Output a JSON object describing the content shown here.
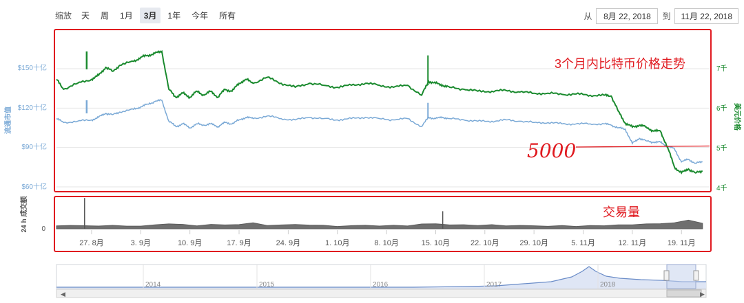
{
  "zoom": {
    "label": "缩放",
    "options": [
      "天",
      "周",
      "1月",
      "3月",
      "1年",
      "今年",
      "所有"
    ],
    "active": "3月"
  },
  "range": {
    "from_label": "从",
    "from": "8月 22, 2018",
    "to_label": "到",
    "to": "11月 22, 2018"
  },
  "colors": {
    "market_cap": "#7aa9d6",
    "price": "#1a8a2e",
    "volume": "#7a7a7a",
    "annotation": "#e0191f",
    "navigator": "#6a8cc8"
  },
  "chart_data": [
    {
      "type": "line",
      "title": "3个月内比特币价格走势",
      "x_ticks": [
        "27. 8月",
        "3. 9月",
        "10. 9月",
        "17. 9月",
        "24. 9月",
        "1. 10月",
        "8. 10月",
        "15. 10月",
        "22. 10月",
        "29. 10月",
        "5. 11月",
        "12. 11月",
        "19. 11月"
      ],
      "left_axis": {
        "label": "流通市值",
        "ticks": [
          "$60十亿",
          "$90十亿",
          "$120十亿",
          "$150十亿"
        ],
        "range": [
          60,
          150
        ]
      },
      "right_axis": {
        "label": "美元价格",
        "ticks": [
          "4千",
          "5千",
          "6千",
          "7千"
        ],
        "range": [
          4000,
          7000
        ]
      },
      "series": [
        {
          "name": "流通市值",
          "axis": "left",
          "x_days": [
            0,
            1,
            3,
            5,
            6,
            7,
            8,
            9,
            11,
            12,
            13,
            14,
            15,
            16,
            17,
            18,
            19,
            20,
            21,
            22,
            23,
            24,
            25,
            26,
            27,
            28,
            30,
            32,
            34,
            36,
            38,
            40,
            42,
            44,
            46,
            48,
            50,
            52,
            53,
            54,
            55,
            56,
            58,
            60,
            62,
            64,
            66,
            68,
            70,
            72,
            74,
            76,
            78,
            79,
            80,
            81,
            82,
            83,
            84,
            85,
            86,
            87,
            88,
            89,
            90,
            91,
            92
          ],
          "values": [
            112,
            109,
            110,
            111,
            113,
            116,
            115,
            117,
            119,
            121,
            123,
            125,
            126,
            110,
            106,
            108,
            105,
            108,
            107,
            108,
            106,
            109,
            108,
            111,
            113,
            112,
            114,
            112,
            111,
            113,
            112,
            111,
            112,
            113,
            112,
            111,
            112,
            106,
            113,
            112,
            113,
            112,
            111,
            110,
            110,
            111,
            110,
            109,
            109,
            108,
            108,
            108,
            108,
            107,
            105,
            104,
            93,
            97,
            95,
            94,
            94,
            91,
            89,
            79,
            81,
            78,
            79
          ]
        },
        {
          "name": "价格",
          "axis": "right",
          "x_days": [
            0,
            1,
            3,
            5,
            6,
            7,
            8,
            9,
            11,
            12,
            13,
            14,
            15,
            16,
            17,
            18,
            19,
            20,
            21,
            22,
            23,
            24,
            25,
            26,
            27,
            28,
            30,
            32,
            34,
            36,
            38,
            40,
            42,
            44,
            46,
            48,
            50,
            52,
            53,
            54,
            55,
            56,
            58,
            60,
            62,
            64,
            66,
            68,
            70,
            72,
            74,
            76,
            78,
            79,
            80,
            81,
            82,
            83,
            84,
            85,
            86,
            87,
            88,
            89,
            90,
            91,
            92
          ],
          "values": [
            6700,
            6450,
            6600,
            6700,
            6800,
            7000,
            6900,
            7050,
            7150,
            7250,
            7300,
            7350,
            7400,
            6450,
            6250,
            6350,
            6250,
            6400,
            6300,
            6400,
            6250,
            6450,
            6400,
            6600,
            6700,
            6600,
            6750,
            6600,
            6500,
            6600,
            6550,
            6500,
            6550,
            6600,
            6550,
            6500,
            6550,
            6300,
            6650,
            6600,
            6550,
            6500,
            6450,
            6400,
            6400,
            6420,
            6380,
            6350,
            6350,
            6320,
            6330,
            6300,
            6300,
            6280,
            5900,
            5600,
            5500,
            5550,
            5500,
            5400,
            5400,
            5000,
            4500,
            4350,
            4450,
            4350,
            4400
          ]
        }
      ],
      "annotations": [
        {
          "text": "5000",
          "value": 5000
        }
      ]
    },
    {
      "type": "area",
      "title": "交易量",
      "y_label": "24 h 成交额",
      "y_ticks": [
        "0"
      ],
      "x_days": [
        0,
        2,
        4,
        6,
        8,
        10,
        12,
        14,
        16,
        18,
        20,
        22,
        24,
        26,
        28,
        30,
        32,
        34,
        36,
        38,
        40,
        42,
        44,
        46,
        48,
        50,
        52,
        54,
        56,
        58,
        60,
        62,
        64,
        66,
        68,
        70,
        72,
        74,
        76,
        78,
        80,
        82,
        84,
        86,
        88,
        90,
        92
      ],
      "values": [
        3,
        4,
        3,
        4,
        4,
        4,
        4,
        5,
        7,
        5,
        4,
        5,
        4,
        5,
        6,
        4,
        4,
        5,
        5,
        4,
        4,
        4,
        5,
        4,
        4,
        4,
        5,
        6,
        4,
        4,
        4,
        4,
        4,
        4,
        4,
        4,
        4,
        4,
        4,
        4,
        5,
        4,
        6,
        5,
        7,
        10,
        6
      ],
      "spikes": [
        {
          "x_day": 4,
          "value": 28
        },
        {
          "x_day": 55,
          "value": 16
        }
      ]
    },
    {
      "type": "area",
      "x_ticks": [
        "2014",
        "2015",
        "2016",
        "2017",
        "2018"
      ]
    }
  ]
}
